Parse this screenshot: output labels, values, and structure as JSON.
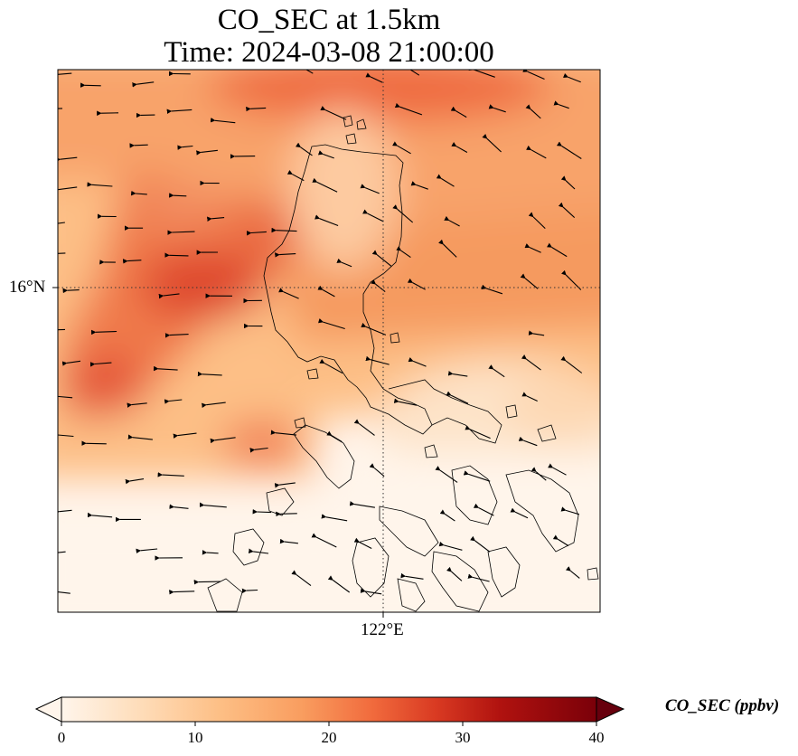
{
  "title": {
    "line1": "CO_SEC at 1.5km",
    "line2": "Time: 2024-03-08 21:00:00"
  },
  "map": {
    "lat_label": "16°N",
    "lon_label": "122°E",
    "gridlines": "dotted"
  },
  "colorbar": {
    "label": "CO_SEC (ppbv)",
    "ticks": [
      "0",
      "10",
      "20",
      "30",
      "40"
    ],
    "min": 0,
    "max": 40,
    "colormap": [
      "#fff5eb",
      "#fdd0a2",
      "#fdae6b",
      "#f16913",
      "#d94801",
      "#a50f15",
      "#67000d"
    ],
    "extend": "both"
  }
}
